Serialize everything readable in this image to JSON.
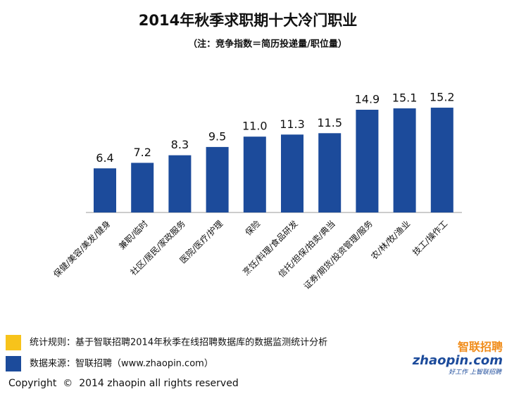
{
  "chart_data": {
    "type": "bar",
    "title": "2014年秋季求职期十大冷门职业",
    "subtitle": "（注：竞争指数＝简历投递量/职位量）",
    "categories": [
      "保健/美容/美发/健身",
      "兼职/临时",
      "社区/居民/家政服务",
      "医院/医疗/护理",
      "保险",
      "烹饪/料理/食品研发",
      "信托/担保/拍卖/典当",
      "证券/期货/投资管理/服务",
      "农/林/牧/渔业",
      "技工/操作工"
    ],
    "values": [
      6.4,
      7.2,
      8.3,
      9.5,
      11.0,
      11.3,
      11.5,
      14.9,
      15.1,
      15.2
    ],
    "value_labels": [
      "6.4",
      "7.2",
      "8.3",
      "9.5",
      "11.0",
      "11.3",
      "11.5",
      "14.9",
      "15.1",
      "15.2"
    ],
    "color": "#1c4b9b"
  },
  "notes": [
    {
      "text": "统计规则：基于智联招聘2014年秋季在线招聘数据库的数据监测统计分析",
      "color": "#f7c31b"
    },
    {
      "text": "数据来源：智联招聘（www.zhaopin.com）",
      "color": "#1c4b9b"
    }
  ],
  "logo": {
    "brand": "智联招聘",
    "site": "zhaopin.com",
    "slogan": "好工作 上智联招聘"
  },
  "copyright": "Copyright  ©  2014 zhaopin all rights reserved"
}
